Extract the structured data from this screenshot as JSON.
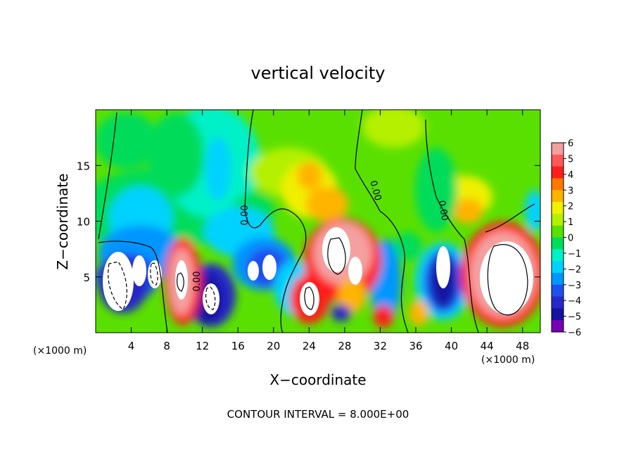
{
  "chart_data": {
    "type": "heatmap",
    "title": "vertical velocity",
    "xlabel": "X−coordinate",
    "ylabel": "Z−coordinate",
    "x_unit_left": "(×1000 m)",
    "x_unit_right": "(×1000 m)",
    "xlim": [
      0,
      50
    ],
    "ylim": [
      0,
      20
    ],
    "x_ticks": [
      "4",
      "8",
      "12",
      "16",
      "20",
      "24",
      "28",
      "32",
      "36",
      "40",
      "44",
      "48"
    ],
    "y_ticks": [
      "5",
      "10",
      "15"
    ],
    "colorbar_ticks": [
      "6",
      "5",
      "4",
      "3",
      "2",
      "1",
      "0",
      "−1",
      "−2",
      "−3",
      "−4",
      "−5",
      "−6"
    ],
    "colorbar_colors": [
      "#f4a0a0",
      "#ff5858",
      "#ff1e1e",
      "#ff7800",
      "#ffb400",
      "#f0f000",
      "#b4f000",
      "#5ae000",
      "#00dc5a",
      "#00f0c8",
      "#00d2ff",
      "#0096ff",
      "#1e50f0",
      "#2828c8",
      "#1414a0",
      "#7800b4"
    ],
    "contour_labels": [
      "0.00",
      "0.00",
      "0.00",
      "0.00"
    ],
    "footer": "CONTOUR INTERVAL = 8.000E+00"
  }
}
